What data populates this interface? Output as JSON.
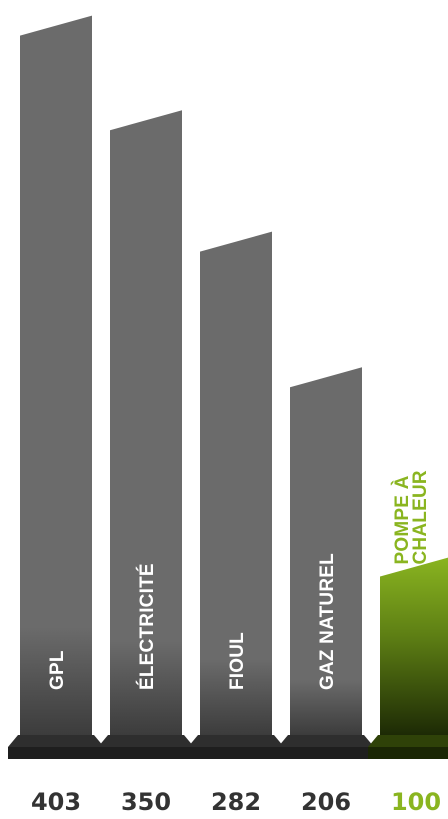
{
  "chart_data": {
    "type": "bar",
    "categories": [
      "GPL",
      "ÉLECTRICITÉ",
      "FIOUL",
      "GAZ NATUREL",
      "POMPE À CHALEUR"
    ],
    "category_lines": [
      [
        "GPL"
      ],
      [
        "ÉLECTRICITÉ"
      ],
      [
        "FIOUL"
      ],
      [
        "GAZ NATUREL"
      ],
      [
        "POMPE À",
        "CHALEUR"
      ]
    ],
    "values": [
      403,
      350,
      282,
      206,
      100
    ],
    "highlight_index": 4,
    "colors": {
      "bar": "#6b6b6b",
      "bar_dark": "#3c3c3c",
      "base": "#2e2e2e",
      "base_dark": "#1e1e1e",
      "highlight": "#8ab520",
      "highlight_dark": "#1d2a05",
      "label_text": "#ffffff",
      "value_text": "#333333",
      "value_highlight": "#8ab520"
    }
  }
}
